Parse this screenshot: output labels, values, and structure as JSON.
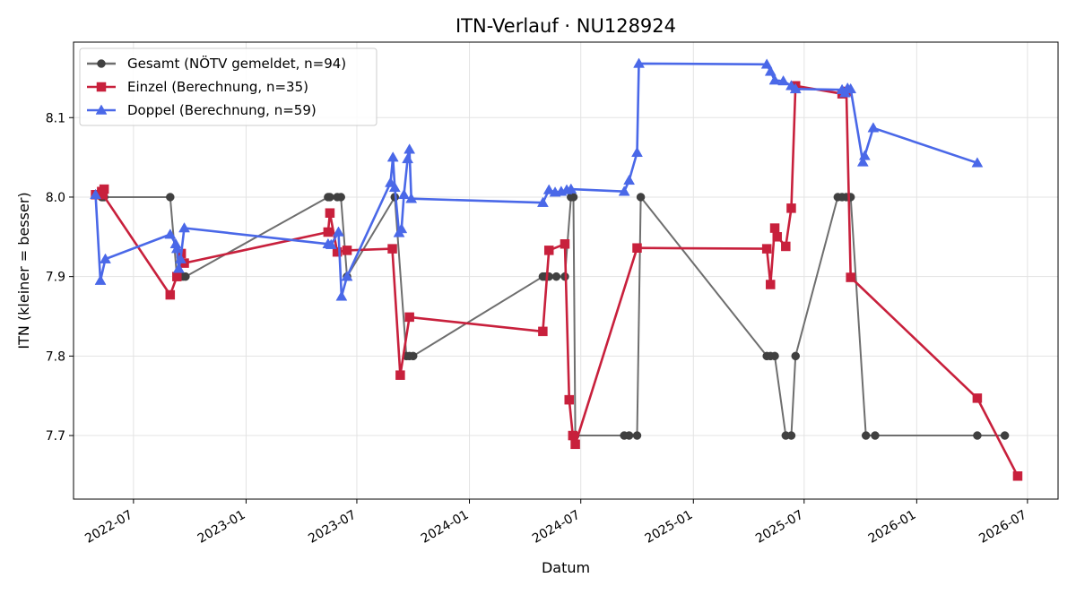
{
  "chart_data": {
    "type": "line",
    "title": "ITN-Verlauf · NU128924",
    "xlabel": "Datum",
    "ylabel": "ITN  (kleiner = besser)",
    "x_type": "date",
    "xlim": [
      "2022-03-25",
      "2026-08-20"
    ],
    "ylim": [
      7.62,
      8.195
    ],
    "x_ticks": [
      "2022-07-01",
      "2023-01-01",
      "2023-07-01",
      "2024-01-01",
      "2024-07-01",
      "2025-01-01",
      "2025-07-01",
      "2026-01-01",
      "2026-07-01"
    ],
    "x_tick_labels": [
      "2022-07",
      "2023-01",
      "2023-07",
      "2024-01",
      "2024-07",
      "2025-01",
      "2025-07",
      "2026-01",
      "2026-07"
    ],
    "y_ticks": [
      7.7,
      7.8,
      7.9,
      8.0,
      8.1
    ],
    "y_tick_labels": [
      "7.7",
      "7.8",
      "7.9",
      "8.0",
      "8.1"
    ],
    "grid": true,
    "legend_position": "top-left",
    "series": [
      {
        "name": "Gesamt (NÖTV gemeldet, n=94)",
        "color": "#6e6e6e",
        "marker_color": "#404040",
        "marker": "circle",
        "points": [
          [
            "2022-05-10",
            8.0
          ],
          [
            "2022-05-12",
            8.0
          ],
          [
            "2022-05-14",
            8.0
          ],
          [
            "2022-08-30",
            8.0
          ],
          [
            "2022-09-10",
            7.9
          ],
          [
            "2022-09-20",
            7.9
          ],
          [
            "2022-09-24",
            7.9
          ],
          [
            "2023-05-15",
            8.0
          ],
          [
            "2023-05-18",
            8.0
          ],
          [
            "2023-05-30",
            8.0
          ],
          [
            "2023-06-05",
            8.0
          ],
          [
            "2023-06-15",
            7.9
          ],
          [
            "2023-09-01",
            8.0
          ],
          [
            "2023-09-20",
            7.8
          ],
          [
            "2023-09-25",
            7.8
          ],
          [
            "2023-10-01",
            7.8
          ],
          [
            "2024-04-30",
            7.9
          ],
          [
            "2024-05-04",
            7.9
          ],
          [
            "2024-05-10",
            7.9
          ],
          [
            "2024-05-22",
            7.9
          ],
          [
            "2024-06-05",
            7.9
          ],
          [
            "2024-06-15",
            8.0
          ],
          [
            "2024-06-19",
            8.0
          ],
          [
            "2024-06-22",
            7.7
          ],
          [
            "2024-09-10",
            7.7
          ],
          [
            "2024-09-18",
            7.7
          ],
          [
            "2024-10-01",
            7.7
          ],
          [
            "2024-10-07",
            8.0
          ],
          [
            "2025-05-01",
            7.8
          ],
          [
            "2025-05-07",
            7.8
          ],
          [
            "2025-05-14",
            7.8
          ],
          [
            "2025-06-01",
            7.7
          ],
          [
            "2025-06-10",
            7.7
          ],
          [
            "2025-06-17",
            7.8
          ],
          [
            "2025-08-25",
            8.0
          ],
          [
            "2025-09-01",
            8.0
          ],
          [
            "2025-09-08",
            8.0
          ],
          [
            "2025-09-15",
            8.0
          ],
          [
            "2025-10-10",
            7.7
          ],
          [
            "2025-10-25",
            7.7
          ],
          [
            "2026-04-10",
            7.7
          ],
          [
            "2026-05-25",
            7.7
          ]
        ]
      },
      {
        "name": "Einzel (Berechnung, n=35)",
        "color": "#c8203c",
        "marker_color": "#c8203c",
        "marker": "square",
        "points": [
          [
            "2022-04-30",
            8.003
          ],
          [
            "2022-05-10",
            8.007
          ],
          [
            "2022-05-14",
            8.01
          ],
          [
            "2022-05-12",
            8.003
          ],
          [
            "2022-08-30",
            7.877
          ],
          [
            "2022-09-10",
            7.9
          ],
          [
            "2022-09-17",
            7.929
          ],
          [
            "2022-09-22",
            7.917
          ],
          [
            "2023-05-15",
            7.956
          ],
          [
            "2023-05-18",
            7.98
          ],
          [
            "2023-05-30",
            7.931
          ],
          [
            "2023-06-15",
            7.933
          ],
          [
            "2023-08-28",
            7.935
          ],
          [
            "2023-09-10",
            7.776
          ],
          [
            "2023-09-25",
            7.849
          ],
          [
            "2024-04-30",
            7.831
          ],
          [
            "2024-05-10",
            7.933
          ],
          [
            "2024-06-05",
            7.941
          ],
          [
            "2024-06-12",
            7.745
          ],
          [
            "2024-06-18",
            7.7
          ],
          [
            "2024-06-22",
            7.689
          ],
          [
            "2024-10-01",
            7.936
          ],
          [
            "2025-05-01",
            7.935
          ],
          [
            "2025-05-07",
            7.89
          ],
          [
            "2025-05-14",
            7.961
          ],
          [
            "2025-05-18",
            7.95
          ],
          [
            "2025-06-01",
            7.938
          ],
          [
            "2025-06-10",
            7.986
          ],
          [
            "2025-06-17",
            8.14
          ],
          [
            "2025-09-01",
            8.13
          ],
          [
            "2025-09-08",
            8.133
          ],
          [
            "2025-09-15",
            7.899
          ],
          [
            "2026-04-10",
            7.747
          ],
          [
            "2026-06-15",
            7.649
          ]
        ]
      },
      {
        "name": "Doppel (Berechnung, n=59)",
        "color": "#4a68e8",
        "marker_color": "#4a68e8",
        "marker": "triangle",
        "points": [
          [
            "2022-04-30",
            8.003
          ],
          [
            "2022-05-08",
            7.895
          ],
          [
            "2022-05-16",
            7.922
          ],
          [
            "2022-08-30",
            7.953
          ],
          [
            "2022-09-08",
            7.941
          ],
          [
            "2022-09-10",
            7.935
          ],
          [
            "2022-09-13",
            7.91
          ],
          [
            "2022-09-16",
            7.922
          ],
          [
            "2022-09-22",
            7.961
          ],
          [
            "2023-05-15",
            7.941
          ],
          [
            "2023-05-20",
            7.94
          ],
          [
            "2023-06-01",
            7.956
          ],
          [
            "2023-06-06",
            7.875
          ],
          [
            "2023-06-15",
            7.9
          ],
          [
            "2023-08-25",
            8.018
          ],
          [
            "2023-08-29",
            8.05
          ],
          [
            "2023-09-01",
            8.012
          ],
          [
            "2023-09-08",
            7.955
          ],
          [
            "2023-09-12",
            7.96
          ],
          [
            "2023-09-16",
            8.003
          ],
          [
            "2023-09-22",
            8.048
          ],
          [
            "2023-09-25",
            8.06
          ],
          [
            "2023-09-28",
            7.998
          ],
          [
            "2024-04-30",
            7.993
          ],
          [
            "2024-05-10",
            8.009
          ],
          [
            "2024-05-20",
            8.006
          ],
          [
            "2024-05-30",
            8.007
          ],
          [
            "2024-06-08",
            8.009
          ],
          [
            "2024-06-15",
            8.01
          ],
          [
            "2024-09-10",
            8.007
          ],
          [
            "2024-09-18",
            8.021
          ],
          [
            "2024-10-01",
            8.056
          ],
          [
            "2024-10-04",
            8.168
          ],
          [
            "2025-05-01",
            8.167
          ],
          [
            "2025-05-07",
            8.158
          ],
          [
            "2025-05-14",
            8.147
          ],
          [
            "2025-05-28",
            8.146
          ],
          [
            "2025-06-10",
            8.14
          ],
          [
            "2025-06-17",
            8.136
          ],
          [
            "2025-09-01",
            8.135
          ],
          [
            "2025-09-06",
            8.131
          ],
          [
            "2025-09-10",
            8.137
          ],
          [
            "2025-09-15",
            8.136
          ],
          [
            "2025-10-05",
            8.044
          ],
          [
            "2025-10-08",
            8.052
          ],
          [
            "2025-10-22",
            8.087
          ],
          [
            "2026-04-10",
            8.043
          ]
        ]
      }
    ]
  }
}
